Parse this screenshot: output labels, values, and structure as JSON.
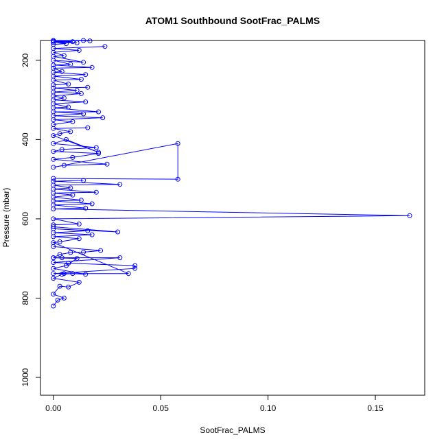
{
  "chart_data": {
    "type": "scatter",
    "title": "ATOM1 Southbound SootFrac_PALMS",
    "xlabel": "SootFrac_PALMS",
    "ylabel": "Pressure (mbar)",
    "xlim": [
      -0.006,
      0.173
    ],
    "ylim": [
      1045,
      150
    ],
    "y_axis": "reversed",
    "x_ticks": [
      0.0,
      0.05,
      0.1,
      0.15
    ],
    "x_tick_labels": [
      "0.00",
      "0.05",
      "0.10",
      "0.15"
    ],
    "y_ticks": [
      200,
      400,
      600,
      800,
      1000
    ],
    "y_tick_labels": [
      "200",
      "400",
      "600",
      "800",
      "1000"
    ],
    "grid": false,
    "legend": "none",
    "series_color": "#0000ff",
    "marker": "open-circle",
    "series": [
      {
        "x": [
          0.0,
          0.002,
          0.005,
          0.0,
          0.003,
          0.007,
          0.012,
          0.0,
          0.004,
          0.009,
          0.015,
          0.0,
          0.006,
          0.011,
          0.0,
          0.003,
          0.008,
          0.014,
          0.022,
          0.0
        ],
        "y": [
          820,
          805,
          800,
          790,
          770,
          772,
          760,
          750,
          740,
          738,
          740,
          725,
          718,
          700,
          698,
          690,
          685,
          684,
          680,
          670
        ]
      },
      {
        "x": [
          0.0,
          0.004,
          0.031,
          0.0,
          0.007,
          0.038,
          0.038,
          0.0,
          0.005,
          0.035,
          0.0,
          0.003,
          0.012,
          0.0,
          0.018,
          0.0,
          0.016,
          0.0,
          0.03,
          0.0
        ],
        "y": [
          698,
          698,
          698,
          710,
          712,
          718,
          725,
          738,
          738,
          738,
          660,
          658,
          650,
          645,
          640,
          635,
          630,
          625,
          633,
          620
        ]
      },
      {
        "x": [
          0.0,
          0.012,
          0.0,
          0.166,
          0.0,
          0.015,
          0.0,
          0.018,
          0.0,
          0.013,
          0.0,
          0.009,
          0.0,
          0.02,
          0.0,
          0.008,
          0.0,
          0.031,
          0.0,
          0.014
        ],
        "y": [
          615,
          613,
          600,
          592,
          575,
          573,
          565,
          562,
          555,
          553,
          545,
          540,
          535,
          533,
          525,
          522,
          515,
          513,
          505,
          503
        ]
      },
      {
        "x": [
          0.0,
          0.058,
          0.058,
          0.0,
          0.005,
          0.025,
          0.0,
          0.009,
          0.021,
          0.0,
          0.004,
          0.02,
          0.0,
          0.006,
          0.021,
          0.0,
          0.003,
          0.008,
          0.0,
          0.016
        ],
        "y": [
          498,
          500,
          410,
          470,
          465,
          462,
          450,
          445,
          435,
          430,
          425,
          420,
          410,
          400,
          432,
          390,
          385,
          380,
          372,
          370
        ]
      },
      {
        "x": [
          0.0,
          0.009,
          0.0,
          0.023,
          0.0,
          0.014,
          0.0,
          0.021,
          0.0,
          0.007,
          0.0,
          0.015,
          0.0,
          0.005,
          0.0,
          0.013,
          0.0,
          0.011,
          0.0,
          0.016
        ],
        "y": [
          362,
          355,
          350,
          345,
          340,
          335,
          330,
          330,
          320,
          318,
          310,
          305,
          300,
          295,
          290,
          284,
          280,
          276,
          270,
          268
        ]
      },
      {
        "x": [
          0.0,
          0.007,
          0.0,
          0.013,
          0.0,
          0.015,
          0.0,
          0.004,
          0.0,
          0.018,
          0.0,
          0.008,
          0.0,
          0.014,
          0.0,
          0.005,
          0.0,
          0.012,
          0.0,
          0.024
        ],
        "y": [
          262,
          260,
          250,
          248,
          240,
          236,
          230,
          228,
          220,
          218,
          212,
          210,
          200,
          205,
          190,
          188,
          180,
          175,
          170,
          165
        ]
      },
      {
        "x": [
          0.0,
          0.006,
          0.0,
          0.011,
          0.0,
          0.009,
          0.0,
          0.017,
          0.0,
          0.014
        ],
        "y": [
          160,
          158,
          155,
          156,
          152,
          153,
          150,
          151,
          150,
          150
        ]
      }
    ]
  }
}
